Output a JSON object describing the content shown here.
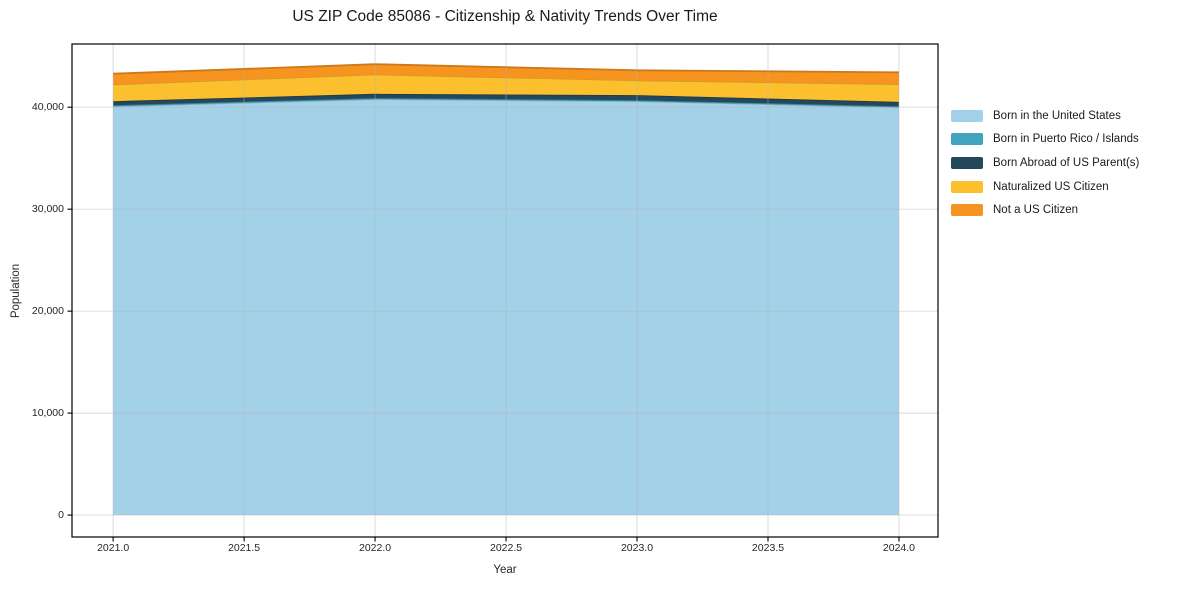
{
  "colors": {
    "figure_background": "#ffffff",
    "axes_spine": "#000000",
    "grid": "#b4b4b4",
    "text": "#262626"
  },
  "chart_data": {
    "type": "area",
    "stacked": true,
    "title": "US ZIP Code 85086 - Citizenship & Nativity Trends Over Time",
    "xlabel": "Year",
    "ylabel": "Population",
    "x": [
      2021,
      2022,
      2023,
      2024
    ],
    "series": [
      {
        "name": "Born in the United States",
        "color": "#A3D1E8",
        "values": [
          40100,
          40800,
          40600,
          40000
        ]
      },
      {
        "name": "Born in Puerto Rico / Islands",
        "color": "#41A4BF",
        "values": [
          90,
          90,
          90,
          90
        ]
      },
      {
        "name": "Born Abroad of US Parent(s)",
        "color": "#23485C",
        "values": [
          400,
          430,
          500,
          430
        ]
      },
      {
        "name": "Naturalized US Citizen",
        "color": "#FCC02E",
        "values": [
          1650,
          1900,
          1450,
          1750
        ]
      },
      {
        "name": "Not a US Citizen",
        "color": "#F79420",
        "values": [
          1050,
          1000,
          980,
          1150
        ]
      }
    ],
    "totals": [
      43290,
      44220,
      43620,
      43420
    ],
    "x_ticks": [
      "2021.0",
      "2021.5",
      "2022.0",
      "2022.5",
      "2023.0",
      "2023.5",
      "2024.0"
    ],
    "x_tick_values": [
      2021,
      2021.5,
      2022,
      2022.5,
      2023,
      2023.5,
      2024
    ],
    "y_ticks": [
      "0",
      "10,000",
      "20,000",
      "30,000",
      "40,000"
    ],
    "y_tick_values": [
      0,
      10000,
      20000,
      30000,
      40000
    ],
    "xlim": [
      2020.843,
      2024.149
    ],
    "ylim": [
      -2150,
      46200
    ],
    "grid": true,
    "legend_position": "right"
  }
}
